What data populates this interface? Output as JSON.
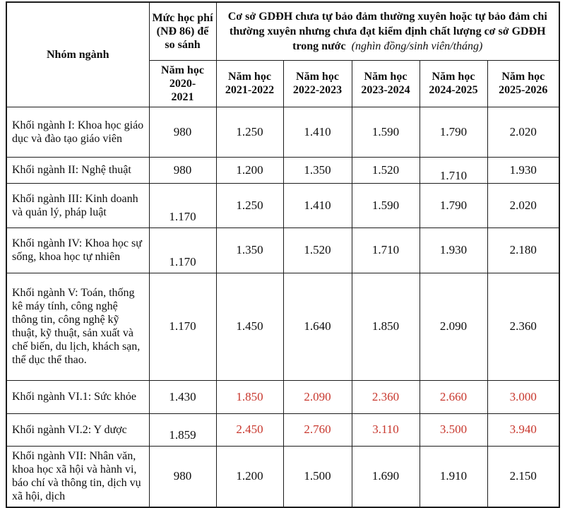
{
  "colors": {
    "value_red": "#c8372d",
    "border": "#1c1c1c",
    "text": "#0d0d0d",
    "background": "#ffffff"
  },
  "table": {
    "header": {
      "group_label": "Nhóm ngành",
      "compare_label": "Mức học phí (NĐ 86) để so sánh",
      "compare_year": "Năm học\n2020-\n2021",
      "span_title": "Cơ sở GDĐH chưa tự bảo đảm thường xuyên hoặc tự bảo đảm chi thường xuyên nhưng chưa đạt kiểm định chất lượng cơ sở GDĐH trong nước",
      "span_unit": "(nghìn đồng/sinh viên/tháng)",
      "year_cols": [
        "Năm học\n2021-2022",
        "Năm học\n2022-2023",
        "Năm học\n2023-2024",
        "Năm học\n2024-2025",
        "Năm học\n2025-2026"
      ]
    },
    "rows": [
      {
        "label": "Khối ngành I: Khoa học giáo dục và đào tạo giáo viên",
        "base": "980",
        "values": [
          "1.250",
          "1.410",
          "1.590",
          "1.790",
          "2.020"
        ],
        "values_red": false,
        "base_low": false,
        "low_value_indexes": []
      },
      {
        "label": "Khối ngành II: Nghệ thuật",
        "base": "980",
        "values": [
          "1.200",
          "1.350",
          "1.520",
          "1.710",
          "1.930"
        ],
        "values_red": false,
        "base_low": false,
        "low_value_indexes": [
          3
        ]
      },
      {
        "label": "Khối ngành III: Kinh doanh và quản lý, pháp luật",
        "base": "1.170",
        "values": [
          "1.250",
          "1.410",
          "1.590",
          "1.790",
          "2.020"
        ],
        "values_red": false,
        "base_low": true,
        "low_value_indexes": []
      },
      {
        "label": "Khối ngành IV: Khoa học sự sống, khoa học tự nhiên",
        "base": "1.170",
        "values": [
          "1.350",
          "1.520",
          "1.710",
          "1.930",
          "2.180"
        ],
        "values_red": false,
        "base_low": true,
        "low_value_indexes": []
      },
      {
        "label": "Khối ngành V: Toán, thống kê máy tính, công nghệ thông tin, công nghệ kỹ thuật, kỹ thuật, sản xuất và chế biến, du lịch, khách sạn, thể dục thể thao.",
        "base": "1.170",
        "values": [
          "1.450",
          "1.640",
          "1.850",
          "2.090",
          "2.360"
        ],
        "values_red": false,
        "base_low": false,
        "low_value_indexes": []
      },
      {
        "label": "Khối ngành VI.1: Sức khỏe",
        "base": "1.430",
        "values": [
          "1.850",
          "2.090",
          "2.360",
          "2.660",
          "3.000"
        ],
        "values_red": true,
        "base_low": false,
        "low_value_indexes": []
      },
      {
        "label": "Khối ngành VI.2: Y dược",
        "base": "1.859",
        "values": [
          "2.450",
          "2.760",
          "3.110",
          "3.500",
          "3.940"
        ],
        "values_red": true,
        "base_low": true,
        "low_value_indexes": []
      },
      {
        "label": "Khối ngành VII: Nhân văn, khoa học xã hội và hành vi, báo chí và thông tin, dịch vụ xã hội, dịch",
        "base": "980",
        "values": [
          "1.200",
          "1.500",
          "1.690",
          "1.910",
          "2.150"
        ],
        "values_red": false,
        "base_low": false,
        "low_value_indexes": []
      }
    ]
  }
}
